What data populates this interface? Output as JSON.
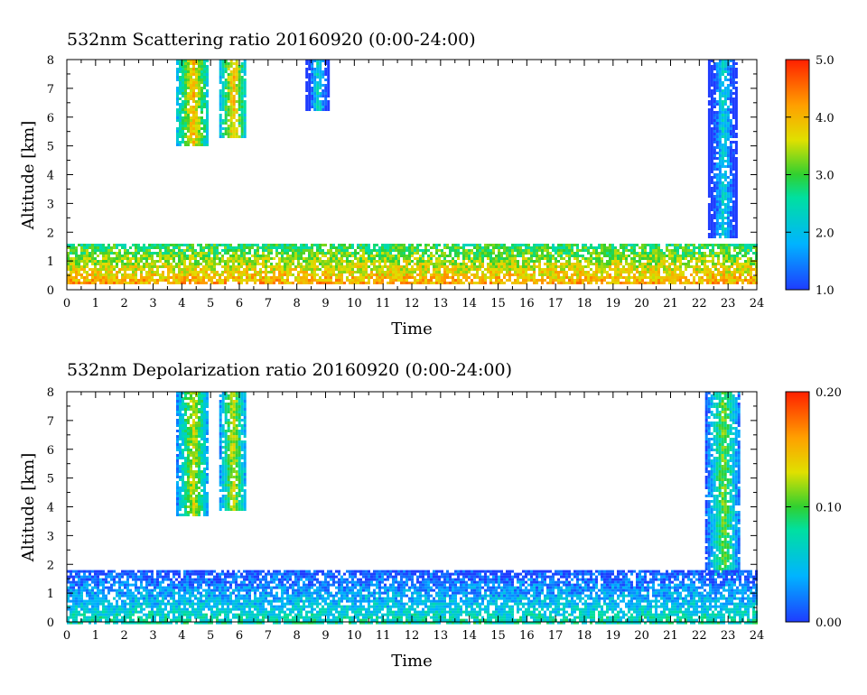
{
  "chart_data": [
    {
      "type": "heatmap",
      "title": "532nm Scattering ratio  20160920 (0:00-24:00)",
      "xlabel": "Time",
      "ylabel": "Altitude [km]",
      "xlim": [
        0,
        24
      ],
      "ylim": [
        0,
        8
      ],
      "x_ticks": [
        "0",
        "1",
        "2",
        "3",
        "4",
        "5",
        "6",
        "7",
        "8",
        "9",
        "10",
        "11",
        "12",
        "13",
        "14",
        "15",
        "16",
        "17",
        "18",
        "19",
        "20",
        "21",
        "22",
        "23",
        "24"
      ],
      "y_ticks": [
        "0",
        "1",
        "2",
        "3",
        "4",
        "5",
        "6",
        "7",
        "8"
      ],
      "colorbar": {
        "min": 1.0,
        "max": 5.0,
        "tick_labels": [
          "1.0",
          "2.0",
          "3.0",
          "4.0",
          "5.0"
        ]
      },
      "features": [
        {
          "t0": 3.8,
          "t1": 4.9,
          "a0": 5.0,
          "a1": 8.0,
          "level": 3.0
        },
        {
          "t0": 5.3,
          "t1": 6.2,
          "a0": 5.3,
          "a1": 8.0,
          "level": 3.0
        },
        {
          "t0": 22.3,
          "t1": 23.3,
          "a0": 1.8,
          "a1": 8.0,
          "level": 1.3
        },
        {
          "t0": 8.3,
          "t1": 9.1,
          "a0": 6.3,
          "a1": 8.0,
          "level": 1.4
        },
        {
          "t0": 0.0,
          "t1": 24.0,
          "a0": 0.2,
          "a1": 1.6,
          "level": 3.5
        }
      ]
    },
    {
      "type": "heatmap",
      "title": "532nm Depolarization ratio  20160920 (0:00-24:00)",
      "xlabel": "Time",
      "ylabel": "Altitude [km]",
      "xlim": [
        0,
        24
      ],
      "ylim": [
        0,
        8
      ],
      "x_ticks": [
        "0",
        "1",
        "2",
        "3",
        "4",
        "5",
        "6",
        "7",
        "8",
        "9",
        "10",
        "11",
        "12",
        "13",
        "14",
        "15",
        "16",
        "17",
        "18",
        "19",
        "20",
        "21",
        "22",
        "23",
        "24"
      ],
      "y_ticks": [
        "0",
        "1",
        "2",
        "3",
        "4",
        "5",
        "6",
        "7",
        "8"
      ],
      "colorbar": {
        "min": 0.0,
        "max": 0.2,
        "tick_labels": [
          "0.00",
          "0.10",
          "0.20"
        ]
      },
      "features": [
        {
          "t0": 3.8,
          "t1": 4.9,
          "a0": 3.7,
          "a1": 8.0,
          "level": 0.08
        },
        {
          "t0": 5.3,
          "t1": 6.2,
          "a0": 3.9,
          "a1": 8.0,
          "level": 0.08
        },
        {
          "t0": 22.2,
          "t1": 23.4,
          "a0": 1.6,
          "a1": 8.0,
          "level": 0.06
        },
        {
          "t0": 0.0,
          "t1": 24.0,
          "a0": 0.0,
          "a1": 1.8,
          "level": 0.04
        }
      ]
    }
  ]
}
